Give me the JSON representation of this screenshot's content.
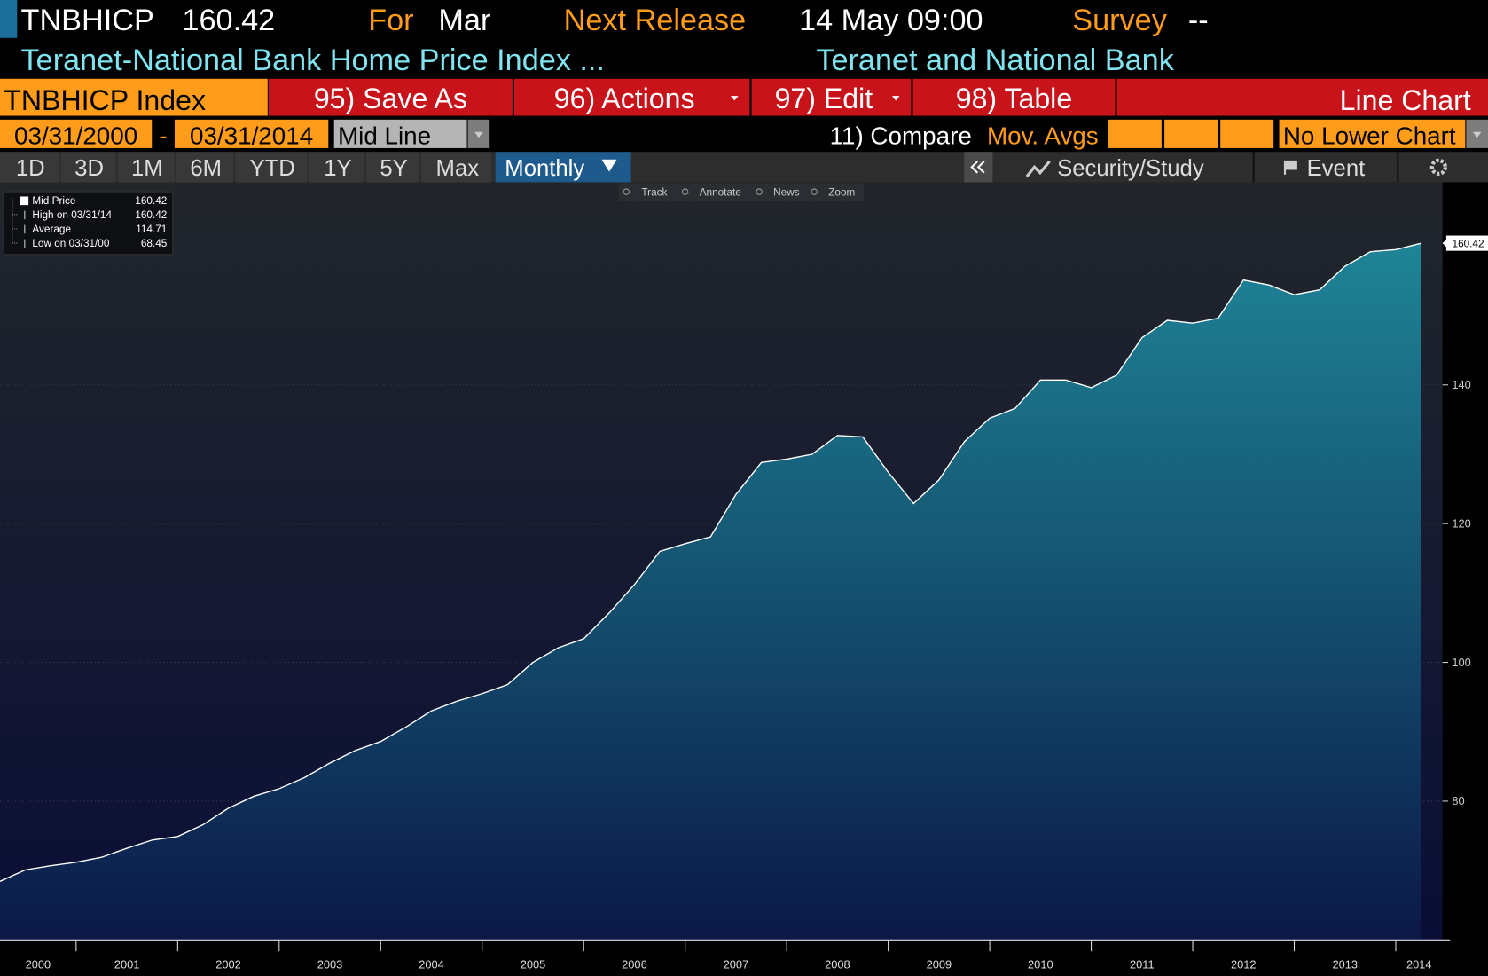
{
  "header": {
    "ticker": "TNBHICP",
    "price": "160.42",
    "for_label": "For",
    "for_value": "Mar",
    "next_label": "Next Release",
    "next_value": "14 May 09:00",
    "survey_label": "Survey",
    "survey_value": "--",
    "name": "Teranet-National Bank Home Price Index ...",
    "source": "Teranet and National Bank"
  },
  "toolbar": {
    "security": "TNBHICP Index",
    "buttons": [
      "95) Save As",
      "96) Actions",
      "97) Edit",
      "98) Table"
    ],
    "chart_type": "Line Chart"
  },
  "range": {
    "start": "03/31/2000",
    "separator": "-",
    "end": "03/31/2014",
    "mode": "Mid Line",
    "compare": "11) Compare",
    "mov_avgs": "Mov. Avgs",
    "lower": "No Lower Chart"
  },
  "periods": [
    "1D",
    "3D",
    "1M",
    "6M",
    "YTD",
    "1Y",
    "5Y",
    "Max"
  ],
  "frequency": "Monthly",
  "right_tools": [
    "Security/Study",
    "Event"
  ],
  "chart_tools": [
    "Track",
    "Annotate",
    "News",
    "Zoom"
  ],
  "chart_data": {
    "type": "area",
    "legend": [
      {
        "label": "Mid Price",
        "value": 160.42
      },
      {
        "label": "High on 03/31/14",
        "value": 160.42
      },
      {
        "label": "Average",
        "value": 114.71
      },
      {
        "label": "Low on 03/31/00",
        "value": 68.45
      }
    ],
    "x": [
      2000.25,
      2000.5,
      2000.75,
      2001,
      2001.25,
      2001.5,
      2001.75,
      2002,
      2002.25,
      2002.5,
      2002.75,
      2003,
      2003.25,
      2003.5,
      2003.75,
      2004,
      2004.25,
      2004.5,
      2004.75,
      2005,
      2005.25,
      2005.5,
      2005.75,
      2006,
      2006.25,
      2006.5,
      2006.75,
      2007,
      2007.25,
      2007.5,
      2007.75,
      2008,
      2008.25,
      2008.5,
      2008.75,
      2009,
      2009.25,
      2009.5,
      2009.75,
      2010,
      2010.25,
      2010.5,
      2010.75,
      2011,
      2011.25,
      2011.5,
      2011.75,
      2012,
      2012.25,
      2012.5,
      2012.75,
      2013,
      2013.25,
      2013.5,
      2013.75,
      2014,
      2014.25
    ],
    "values": [
      68.45,
      70.1,
      70.7,
      71.2,
      71.9,
      73.2,
      74.4,
      74.9,
      76.6,
      79.0,
      80.7,
      81.8,
      83.4,
      85.5,
      87.3,
      88.6,
      90.7,
      93.0,
      94.4,
      95.5,
      96.8,
      100.0,
      102.1,
      103.4,
      107.1,
      111.2,
      116.0,
      117.1,
      118.1,
      124.2,
      128.8,
      129.3,
      130.0,
      132.7,
      132.5,
      127.4,
      122.9,
      126.3,
      131.8,
      135.2,
      136.6,
      140.7,
      140.7,
      139.6,
      141.4,
      146.8,
      149.3,
      148.9,
      149.6,
      155.1,
      154.4,
      153.0,
      153.7,
      157.1,
      159.2,
      159.5,
      160.42
    ],
    "xlim": [
      2000.25,
      2014.46
    ],
    "xticks": [
      2001,
      2002,
      2003,
      2004,
      2005,
      2006,
      2007,
      2008,
      2009,
      2010,
      2011,
      2012,
      2013,
      2014
    ],
    "year_labels": [
      "2000",
      "2001",
      "2002",
      "2003",
      "2004",
      "2005",
      "2006",
      "2007",
      "2008",
      "2009",
      "2010",
      "2011",
      "2012",
      "2013",
      "2014"
    ],
    "ylim": [
      60,
      169.2
    ],
    "yticks": [
      80,
      100,
      120,
      140
    ],
    "grid": true,
    "color": "#ffffff"
  }
}
